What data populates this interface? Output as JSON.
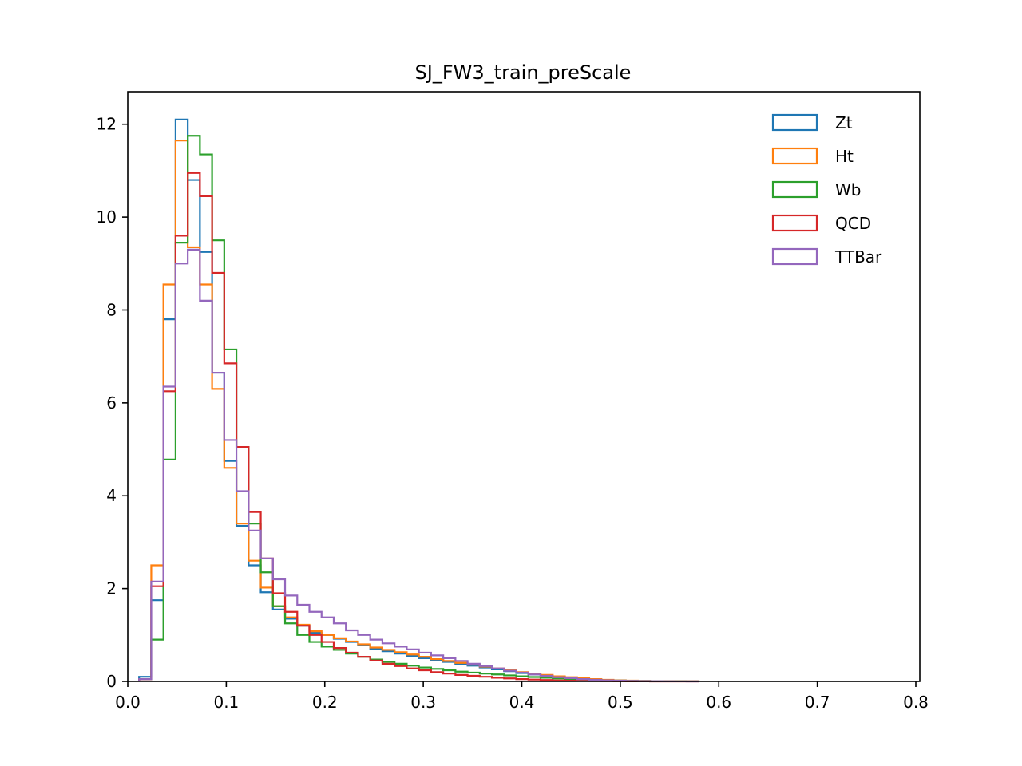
{
  "chart_data": {
    "type": "histogram-step",
    "title": "SJ_FW3_train_preScale",
    "xlabel": "",
    "ylabel": "",
    "xlim": [
      0.0,
      0.8
    ],
    "ylim": [
      0,
      12.7
    ],
    "xticks": [
      "0.0",
      "0.1",
      "0.2",
      "0.3",
      "0.4",
      "0.5",
      "0.6",
      "0.7",
      "0.8"
    ],
    "yticks": [
      "0",
      "2",
      "4",
      "6",
      "8",
      "10",
      "12"
    ],
    "legend_position": "top-right",
    "bin_start": 0.0115,
    "bin_width": 0.01235,
    "series": [
      {
        "name": "Zt",
        "color": "#1f77b4",
        "values": [
          0.1,
          1.75,
          7.8,
          12.1,
          10.8,
          9.25,
          6.65,
          4.75,
          3.35,
          2.5,
          1.92,
          1.55,
          1.35,
          1.2,
          1.05,
          1.0,
          0.92,
          0.85,
          0.78,
          0.7,
          0.65,
          0.6,
          0.55,
          0.5,
          0.46,
          0.42,
          0.38,
          0.34,
          0.3,
          0.26,
          0.22,
          0.18,
          0.15,
          0.12,
          0.1,
          0.08,
          0.06,
          0.04,
          0.03,
          0.02,
          0.015,
          0.01,
          0.007,
          0.005,
          0.003,
          0.002
        ]
      },
      {
        "name": "Ht",
        "color": "#ff7f0e",
        "values": [
          0.05,
          2.5,
          8.55,
          11.65,
          9.35,
          8.55,
          6.3,
          4.6,
          3.4,
          2.6,
          2.02,
          1.62,
          1.38,
          1.22,
          1.08,
          1.0,
          0.93,
          0.86,
          0.8,
          0.73,
          0.68,
          0.63,
          0.58,
          0.53,
          0.48,
          0.44,
          0.4,
          0.36,
          0.32,
          0.28,
          0.24,
          0.2,
          0.17,
          0.14,
          0.11,
          0.09,
          0.07,
          0.05,
          0.035,
          0.025,
          0.017,
          0.011,
          0.007,
          0.005,
          0.003,
          0.002
        ]
      },
      {
        "name": "Wb",
        "color": "#2ca02c",
        "values": [
          0.05,
          0.9,
          4.78,
          9.45,
          11.75,
          11.35,
          9.5,
          7.15,
          5.05,
          3.4,
          2.35,
          1.62,
          1.25,
          1.0,
          0.85,
          0.75,
          0.68,
          0.6,
          0.53,
          0.47,
          0.42,
          0.38,
          0.34,
          0.3,
          0.27,
          0.24,
          0.21,
          0.19,
          0.17,
          0.15,
          0.13,
          0.11,
          0.095,
          0.08,
          0.065,
          0.052,
          0.042,
          0.033,
          0.025,
          0.018,
          0.012,
          0.008,
          0.005,
          0.003,
          0.002,
          0.001
        ]
      },
      {
        "name": "QCD",
        "color": "#d62728",
        "values": [
          0.05,
          2.05,
          6.25,
          9.6,
          10.95,
          10.45,
          8.8,
          6.85,
          5.05,
          3.65,
          2.65,
          1.9,
          1.5,
          1.2,
          1.0,
          0.85,
          0.72,
          0.62,
          0.53,
          0.45,
          0.38,
          0.33,
          0.28,
          0.24,
          0.2,
          0.17,
          0.14,
          0.12,
          0.1,
          0.08,
          0.065,
          0.05,
          0.04,
          0.03,
          0.022,
          0.016,
          0.011,
          0.008,
          0.005,
          0.003,
          0.002,
          0.001,
          0.0,
          0.0,
          0.0,
          0.0
        ]
      },
      {
        "name": "TTBar",
        "color": "#9467bd",
        "values": [
          0.05,
          2.15,
          6.35,
          9.0,
          9.3,
          8.2,
          6.65,
          5.2,
          4.1,
          3.25,
          2.65,
          2.2,
          1.85,
          1.65,
          1.5,
          1.38,
          1.25,
          1.1,
          1.0,
          0.9,
          0.82,
          0.75,
          0.69,
          0.62,
          0.56,
          0.5,
          0.44,
          0.38,
          0.33,
          0.28,
          0.23,
          0.19,
          0.15,
          0.12,
          0.09,
          0.07,
          0.05,
          0.035,
          0.025,
          0.017,
          0.011,
          0.007,
          0.004,
          0.002,
          0.001,
          0.0
        ]
      }
    ]
  }
}
